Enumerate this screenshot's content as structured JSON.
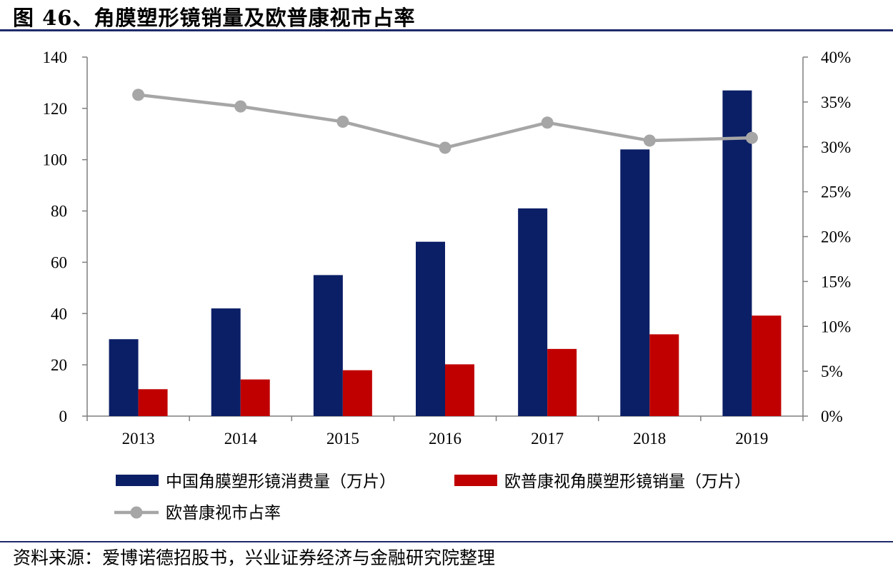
{
  "title": "图 46、角膜塑形镜销量及欧普康视市占率",
  "source": "资料来源：爱博诺德招股书，兴业证券经济与金融研究院整理",
  "chart_data": {
    "type": "bar",
    "categories": [
      "2013",
      "2014",
      "2015",
      "2016",
      "2017",
      "2018",
      "2019"
    ],
    "series": [
      {
        "name": "中国角膜塑形镜消费量（万片）",
        "type": "bar",
        "axis": "left",
        "color": "#0b1f66",
        "values": [
          30,
          42,
          55,
          68,
          81,
          104,
          127
        ]
      },
      {
        "name": "欧普康视角膜塑形镜销量（万片）",
        "type": "bar",
        "axis": "left",
        "color": "#c00000",
        "values": [
          10.5,
          14.3,
          17.9,
          20.2,
          26.2,
          31.9,
          39.2
        ]
      },
      {
        "name": "欧普康视市占率",
        "type": "line",
        "axis": "right",
        "color": "#a6a6a6",
        "values": [
          0.358,
          0.345,
          0.328,
          0.299,
          0.327,
          0.307,
          0.31
        ]
      }
    ],
    "y_left": {
      "min": 0,
      "max": 140,
      "ticks": [
        0,
        20,
        40,
        60,
        80,
        100,
        120,
        140
      ]
    },
    "y_right": {
      "min": 0,
      "max": 0.4,
      "ticks": [
        "0%",
        "5%",
        "10%",
        "15%",
        "20%",
        "25%",
        "30%",
        "35%",
        "40%"
      ]
    },
    "grid": false,
    "legend_position": "bottom"
  }
}
